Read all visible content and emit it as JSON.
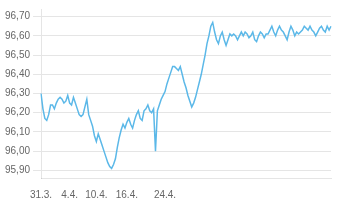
{
  "chart_data": {
    "type": "line",
    "categories": [
      "31.3.",
      null,
      null,
      null,
      null,
      null,
      null,
      null,
      null,
      null,
      null,
      null,
      null,
      null,
      null,
      "4.4.",
      null,
      null,
      null,
      null,
      null,
      null,
      null,
      null,
      null,
      null,
      null,
      null,
      null,
      "10.4.",
      null,
      null,
      null,
      null,
      null,
      null,
      null,
      null,
      null,
      null,
      null,
      null,
      null,
      null,
      null,
      "16.4.",
      null,
      null,
      null,
      null,
      null,
      null,
      null,
      null,
      null,
      null,
      null,
      null,
      null,
      null,
      null,
      null,
      null,
      null,
      null,
      "24.4.",
      null,
      null,
      null,
      null,
      null,
      null,
      null,
      null,
      null,
      null,
      null,
      null,
      null,
      null,
      null,
      null,
      null,
      null,
      null,
      null,
      null,
      null,
      null,
      null,
      null,
      null,
      null,
      null,
      null,
      null,
      null,
      null,
      null,
      null,
      null,
      null,
      null,
      null,
      null,
      null,
      null,
      null,
      null,
      null,
      null,
      null,
      null,
      null,
      null,
      null,
      null,
      null,
      null,
      null,
      null,
      null,
      null,
      null,
      null,
      null,
      null,
      null,
      null,
      null,
      null,
      null,
      null,
      null,
      null,
      null,
      null,
      null,
      null,
      null,
      null,
      null,
      null,
      null,
      null,
      null,
      null,
      null,
      null,
      null,
      null,
      null,
      null
    ],
    "values": [
      96.3,
      96.22,
      96.17,
      96.16,
      96.19,
      96.24,
      96.24,
      96.22,
      96.25,
      96.27,
      96.28,
      96.27,
      96.25,
      96.26,
      96.29,
      96.25,
      96.24,
      96.28,
      96.25,
      96.22,
      96.19,
      96.18,
      96.19,
      96.23,
      96.27,
      96.19,
      96.16,
      96.13,
      96.08,
      96.05,
      96.09,
      96.06,
      96.03,
      96.0,
      95.97,
      95.94,
      95.92,
      95.91,
      95.93,
      95.96,
      96.02,
      96.07,
      96.11,
      96.14,
      96.12,
      96.15,
      96.17,
      96.14,
      96.12,
      96.16,
      96.19,
      96.21,
      96.17,
      96.16,
      96.21,
      96.22,
      96.24,
      96.21,
      96.2,
      96.22,
      96.0,
      96.21,
      96.24,
      96.27,
      96.29,
      96.31,
      96.35,
      96.38,
      96.41,
      96.44,
      96.44,
      96.43,
      96.42,
      96.44,
      96.4,
      96.36,
      96.33,
      96.29,
      96.26,
      96.23,
      96.25,
      96.28,
      96.32,
      96.36,
      96.4,
      96.45,
      96.5,
      96.56,
      96.6,
      96.65,
      96.67,
      96.62,
      96.58,
      96.56,
      96.6,
      96.62,
      96.58,
      96.55,
      96.58,
      96.61,
      96.6,
      96.61,
      96.6,
      96.58,
      96.6,
      96.62,
      96.6,
      96.62,
      96.61,
      96.59,
      96.6,
      96.62,
      96.58,
      96.57,
      96.6,
      96.62,
      96.61,
      96.59,
      96.61,
      96.61,
      96.63,
      96.65,
      96.62,
      96.6,
      96.63,
      96.65,
      96.63,
      96.62,
      96.6,
      96.58,
      96.62,
      96.65,
      96.63,
      96.6,
      96.62,
      96.61,
      96.62,
      96.63,
      96.65,
      96.64,
      96.63,
      96.65,
      96.63,
      96.62,
      96.6,
      96.62,
      96.64,
      96.65,
      96.63,
      96.62,
      96.65,
      96.63,
      96.65
    ],
    "color": "#5bb8e8",
    "ylim": [
      95.86,
      96.74
    ],
    "yticks": [
      {
        "value": 95.9,
        "label": "95,90"
      },
      {
        "value": 96.0,
        "label": "96,00"
      },
      {
        "value": 96.1,
        "label": "96,10"
      },
      {
        "value": 96.2,
        "label": "96,20"
      },
      {
        "value": 96.3,
        "label": "96,30"
      },
      {
        "value": 96.4,
        "label": "96,40"
      },
      {
        "value": 96.5,
        "label": "96,50"
      },
      {
        "value": 96.6,
        "label": "96,60"
      },
      {
        "value": 96.7,
        "label": "96,70"
      }
    ],
    "grid": true
  }
}
